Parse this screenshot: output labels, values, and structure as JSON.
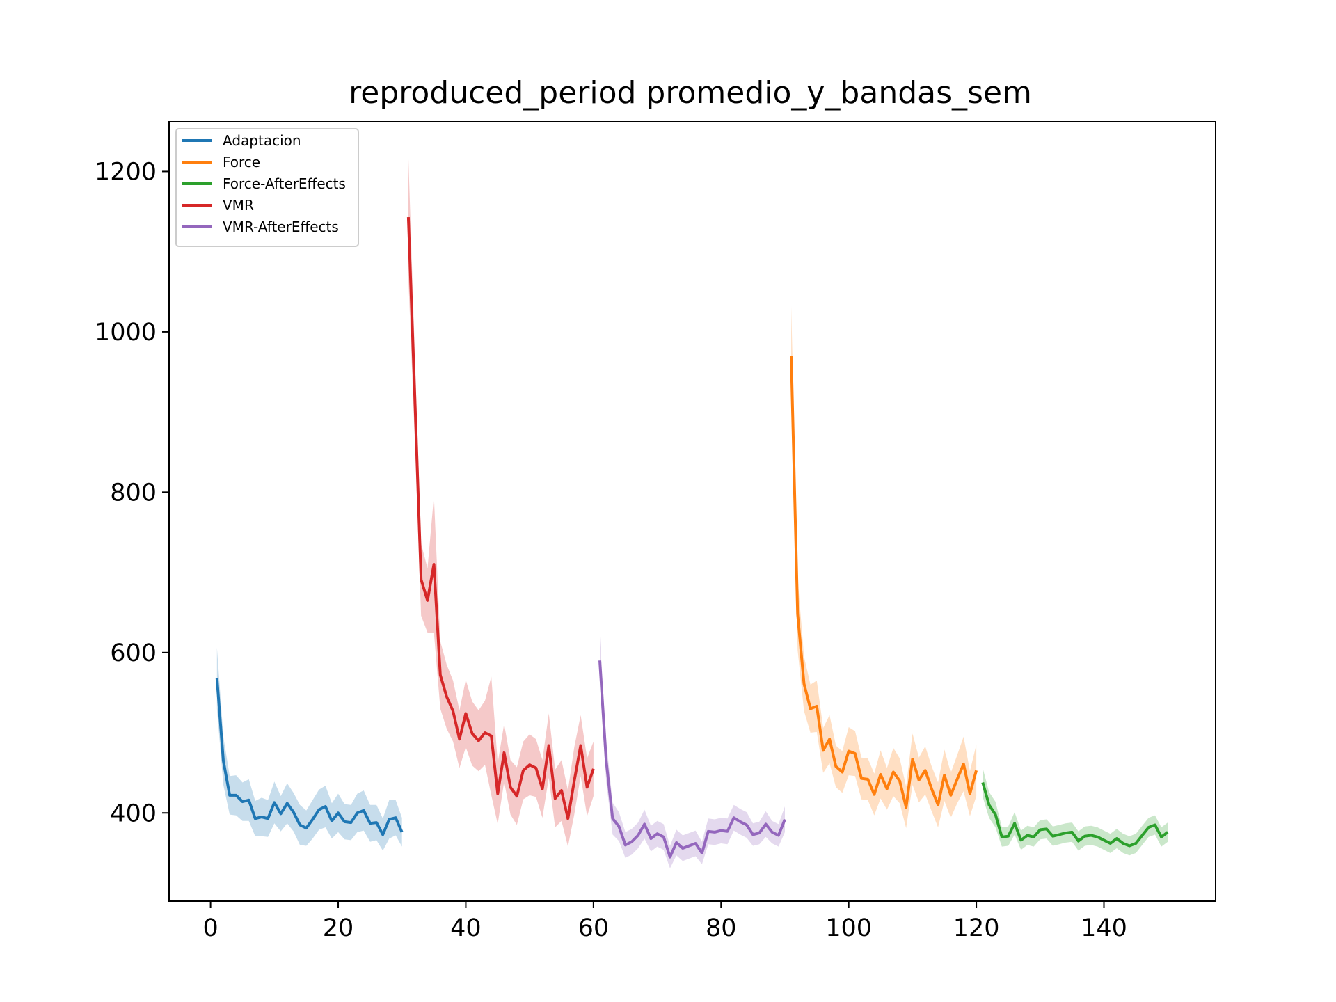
{
  "chart_data": {
    "type": "line",
    "title": "reproduced_period promedio_y_bandas_sem",
    "xlabel": "",
    "ylabel": "",
    "xlim": [
      -6.5,
      157.5
    ],
    "ylim": [
      290,
      1262
    ],
    "xticks": [
      0,
      20,
      40,
      60,
      80,
      100,
      120,
      140
    ],
    "xtick_labels": [
      "0",
      "20",
      "40",
      "60",
      "80",
      "100",
      "120",
      "140"
    ],
    "yticks": [
      400,
      600,
      800,
      1000,
      1200
    ],
    "ytick_labels": [
      "400",
      "600",
      "800",
      "1000",
      "1200"
    ],
    "grid": false,
    "legend_position": "upper-left",
    "series": [
      {
        "name": "Adaptacion",
        "color": "#1f77b4",
        "x": [
          1,
          2,
          3,
          4,
          5,
          6,
          7,
          8,
          9,
          10,
          11,
          12,
          13,
          14,
          15,
          16,
          17,
          18,
          19,
          20,
          21,
          22,
          23,
          24,
          25,
          26,
          27,
          28,
          29,
          30
        ],
        "values": [
          568,
          465,
          422,
          422,
          414,
          416,
          393,
          395,
          393,
          413,
          399,
          412,
          401,
          385,
          381,
          392,
          404,
          408,
          390,
          400,
          389,
          388,
          400,
          403,
          387,
          388,
          373,
          392,
          394,
          376
        ],
        "sem": [
          38,
          30,
          24,
          25,
          24,
          26,
          22,
          24,
          23,
          26,
          22,
          25,
          24,
          25,
          22,
          24,
          25,
          26,
          22,
          24,
          22,
          22,
          24,
          25,
          23,
          22,
          20,
          24,
          22,
          18
        ]
      },
      {
        "name": "Force",
        "color": "#ff7f0e",
        "x": [
          91,
          92,
          93,
          94,
          95,
          96,
          97,
          98,
          99,
          100,
          101,
          102,
          103,
          104,
          105,
          106,
          107,
          108,
          109,
          110,
          111,
          112,
          113,
          114,
          115,
          116,
          117,
          118,
          119,
          120
        ],
        "values": [
          970,
          648,
          561,
          530,
          533,
          478,
          492,
          458,
          451,
          477,
          474,
          443,
          442,
          423,
          448,
          430,
          451,
          440,
          407,
          467,
          441,
          453,
          430,
          410,
          447,
          422,
          442,
          461,
          424,
          453
        ],
        "sem": [
          62,
          45,
          34,
          30,
          32,
          28,
          30,
          26,
          26,
          30,
          28,
          26,
          26,
          26,
          30,
          26,
          30,
          28,
          26,
          32,
          28,
          30,
          28,
          28,
          32,
          28,
          30,
          34,
          28,
          32
        ]
      },
      {
        "name": "Force-AfterEffects",
        "color": "#2ca02c",
        "x": [
          121,
          122,
          123,
          124,
          125,
          126,
          127,
          128,
          129,
          130,
          131,
          132,
          133,
          134,
          135,
          136,
          137,
          138,
          139,
          140,
          141,
          142,
          143,
          144,
          145,
          146,
          147,
          148,
          149,
          150
        ],
        "values": [
          438,
          410,
          398,
          370,
          371,
          387,
          366,
          372,
          370,
          379,
          380,
          371,
          373,
          375,
          376,
          365,
          371,
          372,
          370,
          366,
          362,
          368,
          362,
          359,
          362,
          372,
          382,
          385,
          370,
          376
        ],
        "sem": [
          18,
          16,
          16,
          12,
          12,
          14,
          12,
          12,
          12,
          12,
          12,
          12,
          12,
          12,
          12,
          12,
          12,
          12,
          12,
          12,
          12,
          12,
          12,
          12,
          12,
          12,
          12,
          12,
          12,
          12
        ]
      },
      {
        "name": "VMR",
        "color": "#d62728",
        "x": [
          31,
          32,
          33,
          34,
          35,
          36,
          37,
          38,
          39,
          40,
          41,
          42,
          43,
          44,
          45,
          46,
          47,
          48,
          49,
          50,
          51,
          52,
          53,
          54,
          55,
          56,
          57,
          58,
          59,
          60
        ],
        "values": [
          1143,
          920,
          691,
          665,
          710,
          572,
          545,
          527,
          492,
          524,
          499,
          490,
          500,
          496,
          424,
          475,
          432,
          421,
          453,
          460,
          456,
          430,
          484,
          418,
          428,
          393,
          440,
          484,
          432,
          455
        ],
        "sem": [
          75,
          55,
          45,
          40,
          85,
          42,
          40,
          38,
          36,
          42,
          40,
          38,
          40,
          74,
          38,
          36,
          34,
          36,
          36,
          38,
          36,
          36,
          40,
          36,
          38,
          35,
          42,
          38,
          36,
          34
        ]
      },
      {
        "name": "VMR-AfterEffects",
        "color": "#9467bd",
        "x": [
          61,
          62,
          63,
          64,
          65,
          66,
          67,
          68,
          69,
          70,
          71,
          72,
          73,
          74,
          75,
          76,
          77,
          78,
          79,
          80,
          81,
          82,
          83,
          84,
          85,
          86,
          87,
          88,
          89,
          90
        ],
        "values": [
          590,
          465,
          393,
          383,
          360,
          364,
          372,
          386,
          368,
          374,
          370,
          345,
          363,
          356,
          359,
          362,
          350,
          377,
          376,
          378,
          377,
          394,
          389,
          385,
          373,
          375,
          386,
          376,
          372,
          392
        ],
        "sem": [
          30,
          26,
          20,
          18,
          16,
          16,
          16,
          18,
          16,
          16,
          16,
          14,
          16,
          16,
          16,
          16,
          14,
          16,
          16,
          16,
          16,
          16,
          16,
          16,
          14,
          14,
          16,
          14,
          14,
          16
        ]
      }
    ]
  }
}
